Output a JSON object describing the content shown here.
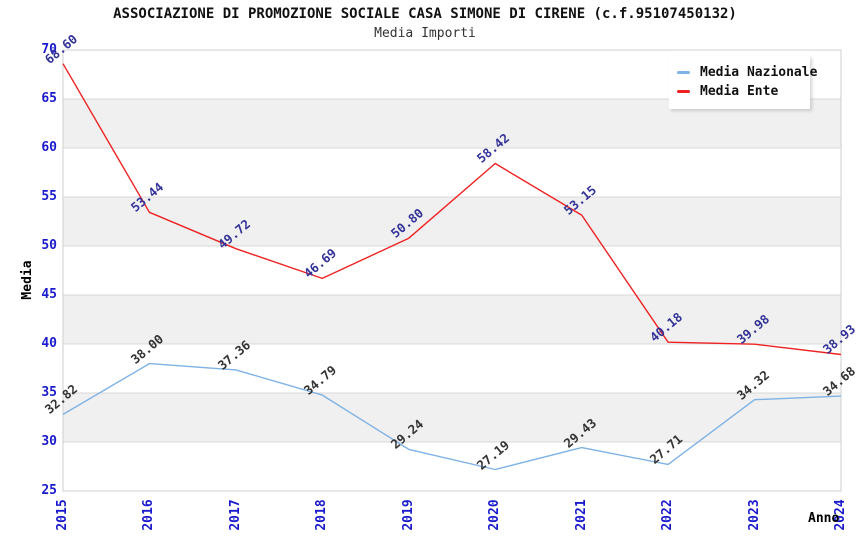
{
  "header": {
    "title": "ASSOCIAZIONE DI PROMOZIONE SOCIALE CASA SIMONE DI CIRENE (c.f.95107450132)",
    "subtitle": "Media Importi"
  },
  "chart_data": {
    "type": "line",
    "title": "ASSOCIAZIONE DI PROMOZIONE SOCIALE CASA SIMONE DI CIRENE (c.f.95107450132)",
    "subtitle": "Media Importi",
    "xlabel": "Anno",
    "ylabel": "Media",
    "x": [
      "2015",
      "2016",
      "2017",
      "2018",
      "2019",
      "2020",
      "2021",
      "2022",
      "2023",
      "2024"
    ],
    "ylim": [
      25,
      70
    ],
    "ytick_step": 5,
    "grid": "horizontal-gridlines-with-alternating-bands",
    "legend_position": "top-right",
    "series": [
      {
        "name": "Media Nazionale",
        "color": "#7fb2e5",
        "label_color": "#333333",
        "values": [
          32.82,
          38.0,
          37.36,
          34.79,
          29.24,
          27.19,
          29.43,
          27.71,
          34.32,
          34.68
        ]
      },
      {
        "name": "Media Ente",
        "color": "#ee2222",
        "label_color": "#333399",
        "values": [
          68.6,
          53.44,
          49.72,
          46.69,
          50.8,
          58.42,
          53.15,
          40.18,
          39.98,
          38.93
        ]
      }
    ],
    "colors": {
      "tick_label": "#1a1acc",
      "band_fill": "#f0f0f0",
      "gridline": "#d9d9d9",
      "plot_border": "#cfcfcf",
      "background": "#ffffff"
    }
  }
}
